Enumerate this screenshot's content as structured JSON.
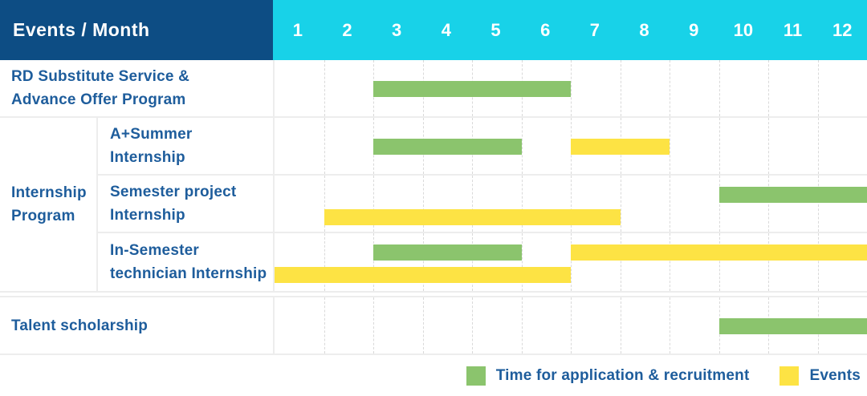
{
  "header": {
    "title": "Events / Month",
    "months": [
      "1",
      "2",
      "3",
      "4",
      "5",
      "6",
      "7",
      "8",
      "9",
      "10",
      "11",
      "12"
    ]
  },
  "colors": {
    "header_bg": "#0d4d84",
    "months_bg": "#18d2e8",
    "header_text": "#ffffff",
    "label_text": "#1e5d9c",
    "bar_green": "#8bc46d",
    "bar_yellow": "#fde344",
    "row_border": "#ededed",
    "grid_line": "#d9d9d9"
  },
  "legend": {
    "items": [
      {
        "swatch": "green",
        "label": "Time for application & recruitment"
      },
      {
        "swatch": "yellow",
        "label": "Events"
      }
    ]
  },
  "chart_data": {
    "type": "bar",
    "subtype": "gantt-schedule",
    "title": "Events / Month",
    "x_axis": {
      "label": "Month",
      "ticks": [
        1,
        2,
        3,
        4,
        5,
        6,
        7,
        8,
        9,
        10,
        11,
        12
      ],
      "range": [
        1,
        12
      ]
    },
    "grid": "vertical-dashed-per-month",
    "legend_position": "bottom-right",
    "series_legend": [
      "Time for application & recruitment",
      "Events"
    ],
    "group_label_lines": [
      "Internship",
      "Program"
    ],
    "rows": [
      {
        "group": null,
        "label": "RD Substitute Service & Advance Offer Program",
        "label_lines": [
          "RD Substitute Service &",
          "Advance Offer Program"
        ],
        "lines": 1,
        "bars": [
          {
            "series": "Time for application & recruitment",
            "color": "green",
            "start_month": 3,
            "end_month": 6,
            "line": 0
          }
        ]
      },
      {
        "group": "Internship Program",
        "label": "A+Summer Internship",
        "label_lines": [
          "A+Summer",
          "Internship"
        ],
        "lines": 1,
        "bars": [
          {
            "series": "Time for application & recruitment",
            "color": "green",
            "start_month": 3,
            "end_month": 5,
            "line": 0
          },
          {
            "series": "Events",
            "color": "yellow",
            "start_month": 7,
            "end_month": 8,
            "line": 0
          }
        ]
      },
      {
        "group": "Internship Program",
        "label": "Semester project Internship",
        "label_lines": [
          "Semester project",
          "Internship"
        ],
        "lines": 2,
        "bars": [
          {
            "series": "Time for application & recruitment",
            "color": "green",
            "start_month": 10,
            "end_month": 12,
            "line": 0
          },
          {
            "series": "Events",
            "color": "yellow",
            "start_month": 2,
            "end_month": 7,
            "line": 1
          }
        ]
      },
      {
        "group": "Internship Program",
        "label": "In-Semester technician Internship",
        "label_lines": [
          "In-Semester",
          "technician Internship"
        ],
        "lines": 2,
        "bars": [
          {
            "series": "Time for application & recruitment",
            "color": "green",
            "start_month": 3,
            "end_month": 5,
            "line": 0
          },
          {
            "series": "Events",
            "color": "yellow",
            "start_month": 7,
            "end_month": 12,
            "line": 0
          },
          {
            "series": "Events",
            "color": "yellow",
            "start_month": 1,
            "end_month": 6,
            "line": 1
          }
        ]
      },
      {
        "group": null,
        "label": "Talent scholarship",
        "label_lines": [
          "Talent scholarship"
        ],
        "lines": 1,
        "bars": [
          {
            "series": "Time for application & recruitment",
            "color": "green",
            "start_month": 10,
            "end_month": 12,
            "line": 0
          }
        ]
      }
    ]
  }
}
